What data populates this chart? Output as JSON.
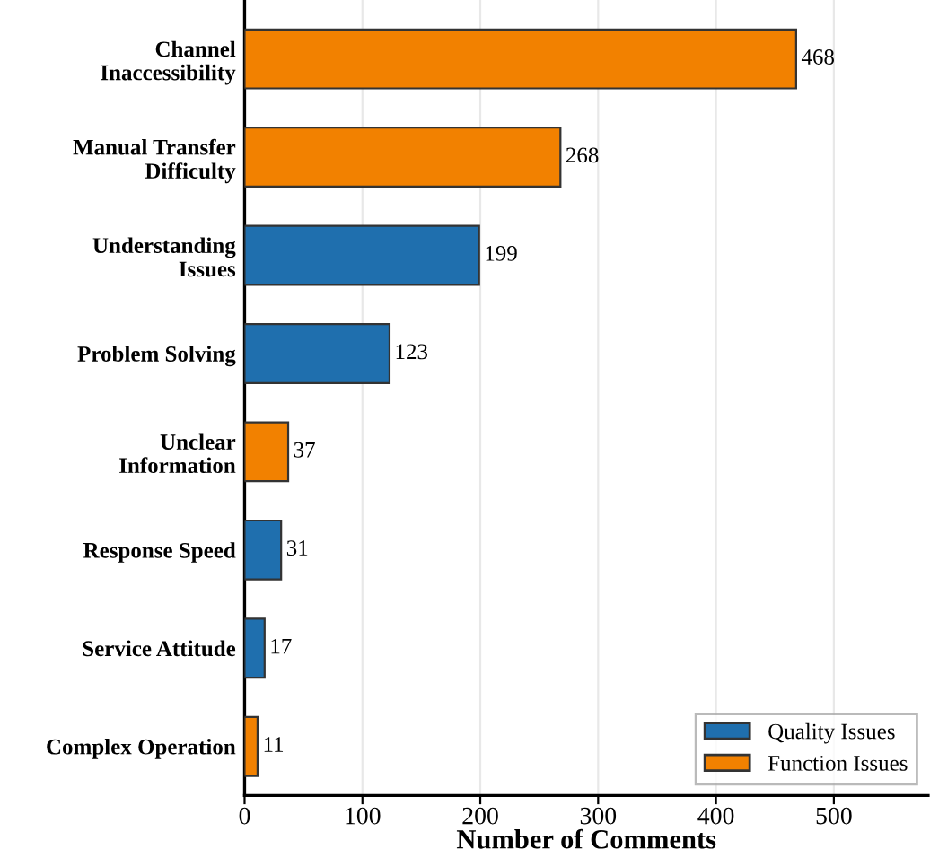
{
  "chart_data": {
    "type": "bar",
    "orientation": "horizontal",
    "xlabel": "Number of Comments",
    "categories": [
      "Channel\nInaccessibility",
      "Manual Transfer\nDifficulty",
      "Understanding\nIssues",
      "Problem Solving",
      "Unclear\nInformation",
      "Response Speed",
      "Service Attitude",
      "Complex Operation"
    ],
    "series": [
      {
        "name": "Quality Issues",
        "color": "#1f6fae",
        "values": [
          null,
          null,
          199,
          123,
          null,
          31,
          17,
          null
        ]
      },
      {
        "name": "Function Issues",
        "color": "#f28100",
        "values": [
          468,
          268,
          null,
          null,
          37,
          null,
          null,
          11
        ]
      }
    ],
    "xlim": [
      0,
      580
    ],
    "xticks": [
      0,
      100,
      200,
      300,
      400,
      500
    ],
    "grid": "x",
    "legend": "bottom right",
    "data_labels": true
  }
}
